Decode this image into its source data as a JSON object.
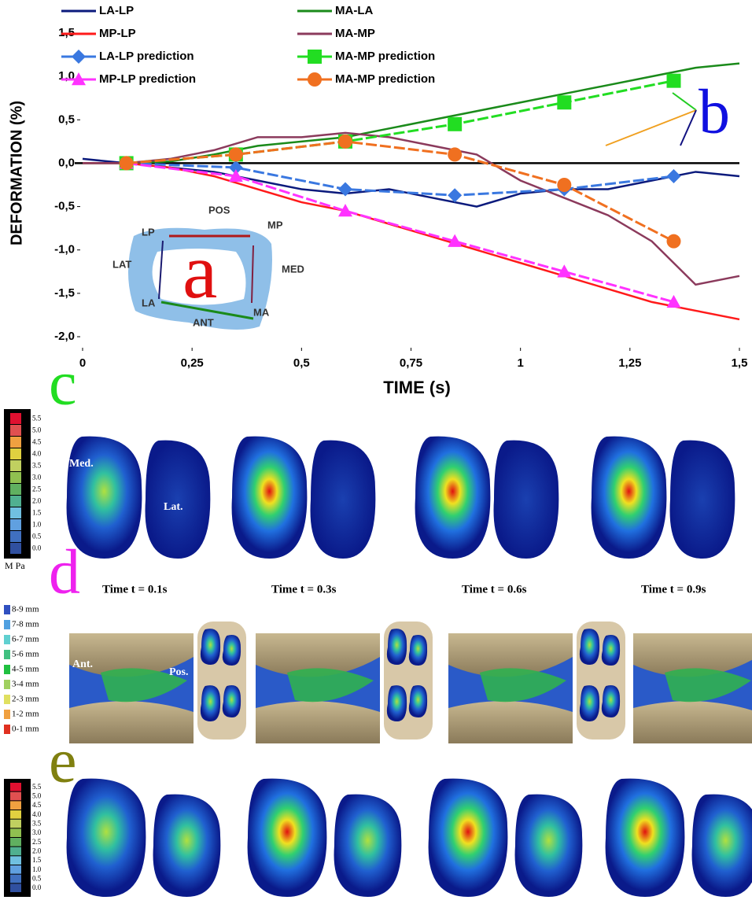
{
  "chart_data": {
    "type": "line",
    "xlabel": "TIME (s)",
    "ylabel": "DEFORMATION (%)",
    "xlim": [
      0,
      1.5
    ],
    "ylim": [
      -2,
      1.5
    ],
    "xticks": [
      0,
      {
        "value": 0.25,
        "label": "0,25"
      },
      {
        "value": 0.5,
        "label": "0,5"
      },
      {
        "value": 0.75,
        "label": "0,75"
      },
      1,
      {
        "value": 1.25,
        "label": "1,25"
      },
      {
        "value": 1.5,
        "label": "1,5"
      }
    ],
    "yticks": [
      {
        "value": 1.5,
        "label": "1,5"
      },
      {
        "value": 1,
        "label": "1,0"
      },
      {
        "value": 0.5,
        "label": "0,5"
      },
      {
        "value": 0,
        "label": "0,0"
      },
      {
        "value": -0.5,
        "label": "-0,5"
      },
      {
        "value": -1,
        "label": "-1,0"
      },
      {
        "value": -1.5,
        "label": "-1,5"
      },
      {
        "value": -2,
        "label": "-2,0"
      }
    ],
    "series": [
      {
        "name": "LA-LP",
        "color": "#0b1a7c",
        "marker": "none",
        "x": [
          0,
          0.1,
          0.2,
          0.3,
          0.4,
          0.5,
          0.6,
          0.7,
          0.8,
          0.9,
          1.0,
          1.1,
          1.2,
          1.3,
          1.4,
          1.5
        ],
        "values": [
          0.05,
          0.0,
          -0.05,
          -0.1,
          -0.2,
          -0.3,
          -0.35,
          -0.3,
          -0.4,
          -0.5,
          -0.35,
          -0.3,
          -0.3,
          -0.2,
          -0.1,
          -0.15
        ]
      },
      {
        "name": "MA-LA",
        "color": "#1a8a1a",
        "marker": "none",
        "x": [
          0,
          0.1,
          0.2,
          0.3,
          0.4,
          0.5,
          0.6,
          0.7,
          0.8,
          0.9,
          1.0,
          1.1,
          1.2,
          1.3,
          1.4,
          1.5
        ],
        "values": [
          0,
          0,
          0.02,
          0.1,
          0.2,
          0.25,
          0.3,
          0.4,
          0.5,
          0.6,
          0.7,
          0.8,
          0.9,
          1.0,
          1.1,
          1.15
        ]
      },
      {
        "name": "MP-LP",
        "color": "#ff1a1a",
        "marker": "none",
        "x": [
          0,
          0.1,
          0.2,
          0.3,
          0.4,
          0.5,
          0.6,
          0.7,
          0.8,
          0.9,
          1.0,
          1.1,
          1.2,
          1.3,
          1.4,
          1.5
        ],
        "values": [
          0,
          0,
          -0.05,
          -0.15,
          -0.3,
          -0.45,
          -0.55,
          -0.7,
          -0.85,
          -1.0,
          -1.15,
          -1.3,
          -1.45,
          -1.6,
          -1.7,
          -1.8
        ]
      },
      {
        "name": "MA-MP",
        "color": "#8b3a5c",
        "marker": "none",
        "x": [
          0,
          0.1,
          0.2,
          0.3,
          0.4,
          0.5,
          0.6,
          0.7,
          0.8,
          0.9,
          1.0,
          1.1,
          1.2,
          1.3,
          1.4,
          1.5
        ],
        "values": [
          0,
          0,
          0.05,
          0.15,
          0.3,
          0.3,
          0.35,
          0.3,
          0.2,
          0.1,
          -0.2,
          -0.4,
          -0.6,
          -0.9,
          -1.4,
          -1.3
        ]
      },
      {
        "name": "LA-LP prediction",
        "color": "#3a78e0",
        "marker": "diamond",
        "x": [
          0.1,
          0.35,
          0.6,
          0.85,
          1.1,
          1.35
        ],
        "values": [
          0,
          -0.05,
          -0.3,
          -0.37,
          -0.3,
          -0.15
        ]
      },
      {
        "name": "MA-MP prediction",
        "color": "#22dd22",
        "marker": "square",
        "x": [
          0.1,
          0.35,
          0.6,
          0.85,
          1.1,
          1.35
        ],
        "values": [
          0,
          0.1,
          0.25,
          0.45,
          0.7,
          0.95
        ]
      },
      {
        "name": "MP-LP prediction",
        "color": "#ff33ff",
        "marker": "triangle",
        "x": [
          0.1,
          0.35,
          0.6,
          0.85,
          1.1,
          1.35
        ],
        "values": [
          0,
          -0.15,
          -0.55,
          -0.9,
          -1.25,
          -1.6
        ]
      },
      {
        "name": "MA-MP prediction",
        "color": "#f07020",
        "marker": "circle",
        "x": [
          0.1,
          0.35,
          0.6,
          0.85,
          1.1,
          1.35
        ],
        "values": [
          0,
          0.1,
          0.25,
          0.1,
          -0.25,
          -0.9
        ]
      }
    ]
  },
  "panel_labels": {
    "a": "a",
    "b": "b",
    "c": "c",
    "d": "d",
    "e": "e"
  },
  "inset": {
    "pos": "POS",
    "mp": "MP",
    "lp": "LP",
    "lat": "LAT",
    "med": "MED",
    "la": "LA",
    "ant": "ANT",
    "ma": "MA"
  },
  "panel_c": {
    "colorbar": [
      "5.5",
      "5.0",
      "4.5",
      "4.0",
      "3.5",
      "3.0",
      "2.5",
      "2.0",
      "1.5",
      "1.0",
      "0.5",
      "0.0"
    ],
    "unit": "M Pa",
    "med": "Med.",
    "lat": "Lat."
  },
  "panel_d": {
    "times": [
      "Time t = 0.1s",
      "Time t = 0.3s",
      "Time t = 0.6s",
      "Time t = 0.9s"
    ],
    "colorbar": [
      "8-9 mm",
      "7-8 mm",
      "6-7 mm",
      "5-6 mm",
      "4-5 mm",
      "3-4 mm",
      "2-3 mm",
      "1-2 mm",
      "0-1 mm"
    ],
    "ant": "Ant.",
    "pos": "Pos."
  },
  "panel_e": {
    "colorbar": [
      "5.5",
      "5.0",
      "4.5",
      "4.0",
      "3.5",
      "3.0",
      "2.5",
      "2.0",
      "1.5",
      "1.0",
      "0.5",
      "0.0"
    ]
  }
}
